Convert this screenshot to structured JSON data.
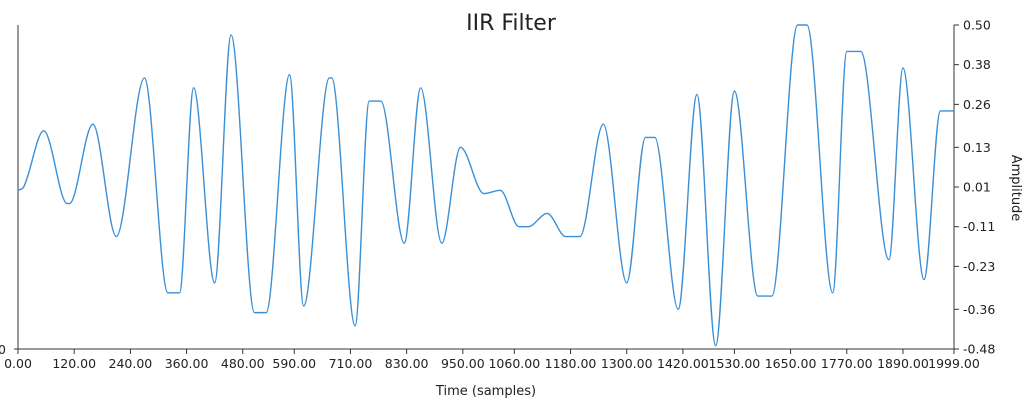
{
  "chart_data": {
    "type": "line",
    "title": "IIR Filter",
    "xlabel": "Time (samples)",
    "ylabel": "Amplitude",
    "left_axis_tick_labels": [
      "0"
    ],
    "x_tick_labels": [
      "0.00",
      "120.00",
      "240.00",
      "360.00",
      "480.00",
      "590.00",
      "710.00",
      "830.00",
      "950.00",
      "1060.00",
      "1180.00",
      "1300.00",
      "1420.00",
      "1530.00",
      "1650.00",
      "1770.00",
      "1890.00",
      "1999.00"
    ],
    "x_tick_values": [
      0,
      120,
      240,
      360,
      480,
      590,
      710,
      830,
      950,
      1060,
      1180,
      1300,
      1420,
      1530,
      1650,
      1770,
      1890,
      1999
    ],
    "y_tick_labels": [
      "0.50",
      "0.38",
      "0.26",
      "0.13",
      "0.01",
      "-0.11",
      "-0.23",
      "-0.36",
      "-0.48"
    ],
    "y_tick_values": [
      0.5,
      0.38,
      0.26,
      0.13,
      0.01,
      -0.11,
      -0.23,
      -0.36,
      -0.48
    ],
    "xlim": [
      0,
      1999
    ],
    "ylim": [
      -0.48,
      0.5
    ],
    "grid": false,
    "line_color": "#3a8fd6",
    "series": [
      {
        "x": [
          0,
          12,
          55,
          105,
          110,
          160,
          210,
          270,
          320,
          345,
          375,
          420,
          455,
          505,
          530,
          580,
          610,
          665,
          670,
          720,
          750,
          775,
          825,
          860,
          905,
          945,
          995,
          1030,
          1070,
          1090,
          1130,
          1170,
          1200,
          1250,
          1300,
          1340,
          1360,
          1410,
          1450,
          1490,
          1530,
          1580,
          1610,
          1665,
          1685,
          1740,
          1770,
          1800,
          1860,
          1890,
          1935,
          1970,
          1999
        ],
        "y": [
          0.0,
          0.01,
          0.18,
          -0.04,
          -0.04,
          0.2,
          -0.14,
          0.34,
          -0.31,
          -0.31,
          0.31,
          -0.28,
          0.47,
          -0.37,
          -0.37,
          0.35,
          -0.35,
          0.34,
          0.34,
          -0.41,
          0.27,
          0.27,
          -0.16,
          0.31,
          -0.16,
          0.13,
          -0.01,
          0.0,
          -0.11,
          -0.11,
          -0.07,
          -0.14,
          -0.14,
          0.2,
          -0.28,
          0.16,
          0.16,
          -0.36,
          0.29,
          -0.47,
          0.3,
          -0.32,
          -0.32,
          0.5,
          0.5,
          -0.31,
          0.42,
          0.42,
          -0.21,
          0.37,
          -0.27,
          0.24,
          0.24
        ]
      }
    ]
  }
}
